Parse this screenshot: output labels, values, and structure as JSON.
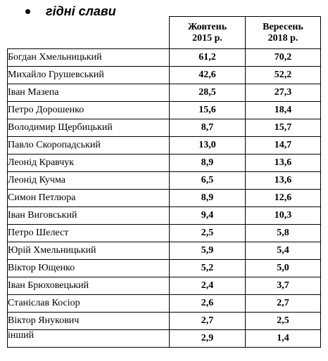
{
  "heading": "гідні слави",
  "table": {
    "columns": [
      {
        "line1": "Жовтень",
        "line2": "2015 р."
      },
      {
        "line1": "Вересень",
        "line2": "2018 р."
      }
    ],
    "rows": [
      {
        "name": "Богдан Хмельницький",
        "v2015": "61,2",
        "v2018": "70,2"
      },
      {
        "name": "Михайло Грушевський",
        "v2015": "42,6",
        "v2018": "52,2"
      },
      {
        "name": "Іван Мазепа",
        "v2015": "28,5",
        "v2018": "27,3"
      },
      {
        "name": "Петро Дорошенко",
        "v2015": "15,6",
        "v2018": "18,4"
      },
      {
        "name": "Володимир Щербицький",
        "v2015": "8,7",
        "v2018": "15,7"
      },
      {
        "name": "Павло Скоропадський",
        "v2015": "13,0",
        "v2018": "14,7"
      },
      {
        "name": "Леонід Кравчук",
        "v2015": "8,9",
        "v2018": "13,6"
      },
      {
        "name": "Леонід Кучма",
        "v2015": "6,5",
        "v2018": "13,6"
      },
      {
        "name": "Симон Петлюра",
        "v2015": "8,9",
        "v2018": "12,6"
      },
      {
        "name": "Іван Виговський",
        "v2015": "9,4",
        "v2018": "10,3"
      },
      {
        "name": "Петро Шелест",
        "v2015": "2,5",
        "v2018": "5,8"
      },
      {
        "name": "Юрій Хмельницький",
        "v2015": "5,9",
        "v2018": "5,4"
      },
      {
        "name": "Віктор Ющенко",
        "v2015": "5,2",
        "v2018": "5,0"
      },
      {
        "name": "Іван Брюховецький",
        "v2015": "2,4",
        "v2018": "3,7"
      },
      {
        "name": "Станіслав Косіор",
        "v2015": "2,6",
        "v2018": "2,7"
      },
      {
        "name": "Віктор Янукович",
        "v2015": "2,7",
        "v2018": "2,5"
      },
      {
        "name": "інший",
        "v2015": "2,9",
        "v2018": "1,4"
      }
    ]
  }
}
